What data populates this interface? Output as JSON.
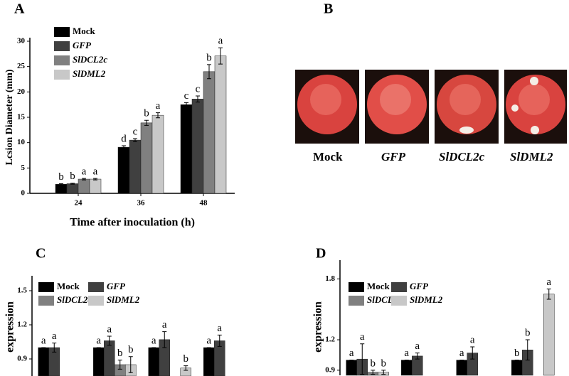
{
  "chart_data": [
    {
      "type": "bar",
      "title": "A",
      "ylabel": "Lcsion Diameter (mm)",
      "xlabel": "Time after inoculation (h)",
      "categories": [
        "24",
        "36",
        "48"
      ],
      "series": [
        {
          "name": "Mock",
          "color": "#000000",
          "values": [
            1.8,
            9.1,
            17.5
          ],
          "errors": [
            0.1,
            0.3,
            0.4
          ],
          "letters": [
            "b",
            "d",
            "c"
          ]
        },
        {
          "name": "GFP",
          "color": "#404040",
          "values": [
            1.9,
            10.5,
            18.6
          ],
          "errors": [
            0.1,
            0.3,
            0.6
          ],
          "letters": [
            "b",
            "c",
            "c"
          ]
        },
        {
          "name": "SlDCL2c",
          "color": "#808080",
          "values": [
            2.8,
            13.9,
            24
          ],
          "errors": [
            0.15,
            0.5,
            1.4
          ],
          "letters": [
            "a",
            "b",
            "b"
          ]
        },
        {
          "name": "SlDML2",
          "color": "#c8c8c8",
          "values": [
            2.8,
            15.4,
            27.1
          ],
          "errors": [
            0.15,
            0.5,
            1.6
          ],
          "letters": [
            "a",
            "a",
            "a"
          ]
        }
      ],
      "ylim": [
        0,
        30
      ],
      "yticks": [
        0,
        5,
        10,
        15,
        20,
        25,
        30
      ]
    },
    {
      "type": "bar",
      "title": "C",
      "ylabel": "expression",
      "categories": [
        null,
        null,
        null,
        null
      ],
      "series": [
        {
          "name": "Mock",
          "color": "#000000",
          "values": [
            1.0,
            1.0,
            1.0,
            1.0
          ],
          "errors": [
            0,
            0,
            0,
            0
          ],
          "letters": [
            "a",
            "a",
            "a",
            "a"
          ]
        },
        {
          "name": "GFP",
          "color": "#404040",
          "values": [
            1.0,
            1.06,
            1.07,
            1.06
          ],
          "errors": [
            0.04,
            0.04,
            0.07,
            0.05
          ],
          "letters": [
            "a",
            "a",
            "a",
            "a"
          ]
        },
        {
          "name": "SlDCL2c",
          "color": "#808080",
          "values": [
            null,
            0.85,
            null,
            null
          ],
          "errors": [
            null,
            0.04,
            null,
            null
          ],
          "letters": [
            null,
            "b",
            null,
            null
          ]
        },
        {
          "name": "SlDML2",
          "color": "#c8c8c8",
          "values": [
            null,
            0.85,
            0.82,
            null
          ],
          "errors": [
            null,
            0.07,
            0.02,
            null
          ],
          "letters": [
            null,
            "b",
            "b",
            null
          ]
        }
      ],
      "ylim": [
        0.75,
        1.6
      ],
      "yticks": [
        0.9,
        1.2,
        1.5
      ]
    },
    {
      "type": "bar",
      "title": "D",
      "ylabel": "expression",
      "categories": [
        null,
        null,
        null,
        null
      ],
      "series": [
        {
          "name": "Mock",
          "color": "#000000",
          "values": [
            1.0,
            1.0,
            1.0,
            1.0
          ],
          "errors": [
            0,
            0,
            0,
            0
          ],
          "letters": [
            "a",
            "a",
            "a",
            "b"
          ]
        },
        {
          "name": "GFP",
          "color": "#404040",
          "values": [
            1.01,
            1.04,
            1.07,
            1.1
          ],
          "errors": [
            0.15,
            0.03,
            0.06,
            0.1
          ],
          "letters": [
            "a",
            "a",
            "a",
            "b"
          ]
        },
        {
          "name": "SlDCL2c",
          "color": "#808080",
          "values": [
            0.88,
            null,
            null,
            null
          ],
          "errors": [
            0.02,
            null,
            null,
            null
          ],
          "letters": [
            "b",
            null,
            null,
            null
          ]
        },
        {
          "name": "SlDML2",
          "color": "#c8c8c8",
          "values": [
            0.88,
            null,
            null,
            1.65
          ],
          "errors": [
            0.02,
            null,
            null,
            0.05
          ],
          "letters": [
            "b",
            null,
            null,
            "a"
          ]
        }
      ],
      "ylim": [
        0.85,
        1.95
      ],
      "yticks": [
        0.9,
        1.2,
        1.8
      ]
    }
  ],
  "panel_b": {
    "title": "B",
    "captions": [
      "Mock",
      "GFP",
      "SlDCL2c",
      "SlDML2"
    ]
  }
}
